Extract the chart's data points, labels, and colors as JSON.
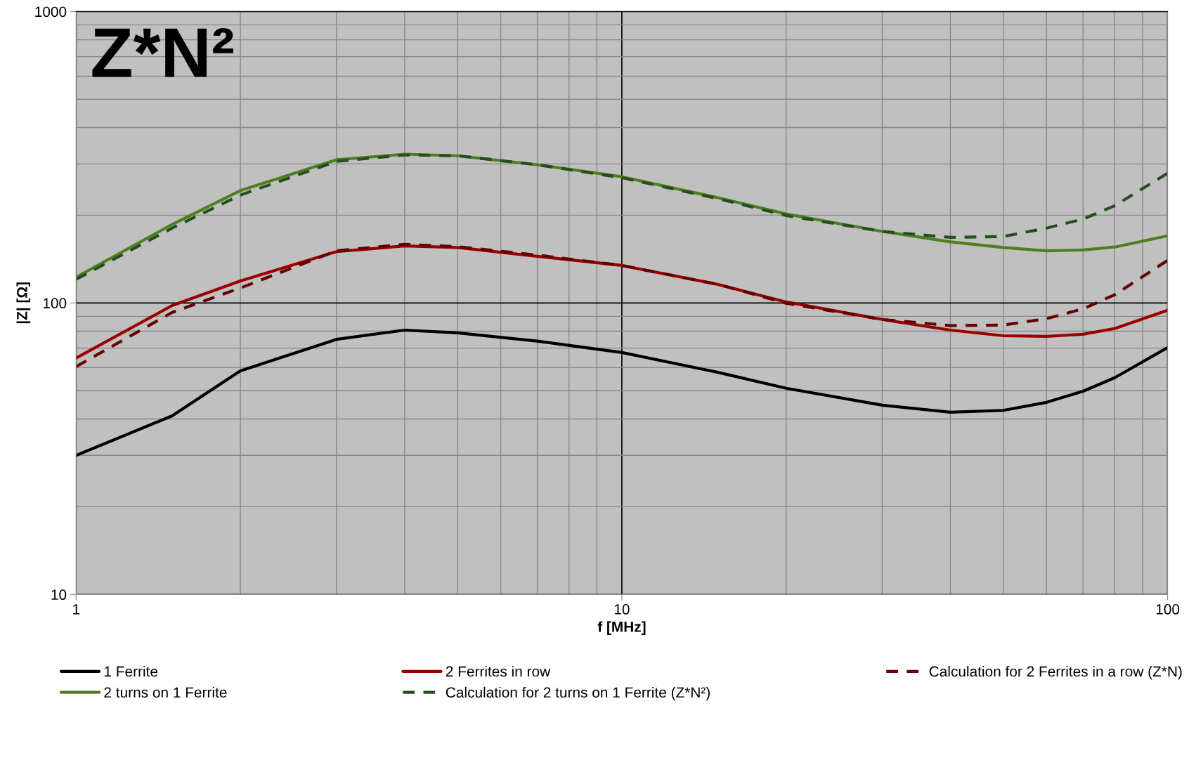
{
  "chart_data": {
    "type": "line",
    "title": "Z*N²",
    "xlabel": "f [MHz]",
    "ylabel": "|Z| [Ω]",
    "log": "xy",
    "xlim": [
      1,
      100
    ],
    "ylim": [
      10,
      1000
    ],
    "xticks": [
      1,
      10,
      100
    ],
    "yticks": [
      10,
      100,
      1000
    ],
    "grid": true,
    "legend": "bottom",
    "marker": "none",
    "x": [
      1,
      1.5,
      2,
      3,
      4,
      5,
      7,
      10,
      15,
      20,
      30,
      40,
      50,
      60,
      70,
      80,
      100
    ],
    "series": [
      {
        "name": "1 Ferrite",
        "color": "#000000",
        "line_style": "solid",
        "values": [
          30,
          41,
          58.5,
          75,
          80.7,
          79,
          74,
          67.6,
          57.8,
          51,
          44.6,
          42.2,
          42.8,
          45.6,
          49.8,
          55.4,
          70.3
        ]
      },
      {
        "name": "2 Ferrites in row",
        "color": "#990000",
        "line_style": "solid",
        "values": [
          64.7,
          98,
          119,
          150,
          157,
          155,
          144.6,
          134.5,
          115.8,
          100.8,
          87.8,
          80.7,
          77.2,
          76.8,
          78.1,
          81.7,
          94.4
        ]
      },
      {
        "name": "Calculation for 2 Ferrites in a row (Z*N)",
        "color": "#660000",
        "line_style": "dashed",
        "values": [
          60.5,
          92.8,
          112.6,
          151,
          159,
          156,
          146,
          134.5,
          115.8,
          99.8,
          87.8,
          83.6,
          84,
          88.3,
          95.5,
          106.7,
          140
        ]
      },
      {
        "name": "2 turns on 1 Ferrite",
        "color": "#4f7f1f",
        "line_style": "solid",
        "values": [
          122.5,
          186,
          243,
          310,
          324,
          320,
          298,
          271,
          229.6,
          202,
          176,
          162,
          155,
          151,
          152,
          155.6,
          170
        ]
      },
      {
        "name": "Calculation for 2 turns on 1 Ferrite (Z*N²)",
        "color": "#254f1f",
        "line_style": "dashed",
        "values": [
          120.5,
          180.7,
          234.6,
          306,
          322,
          320,
          298,
          269,
          228,
          199.5,
          176,
          168,
          169,
          180.7,
          194,
          215.6,
          278.6
        ]
      }
    ]
  }
}
